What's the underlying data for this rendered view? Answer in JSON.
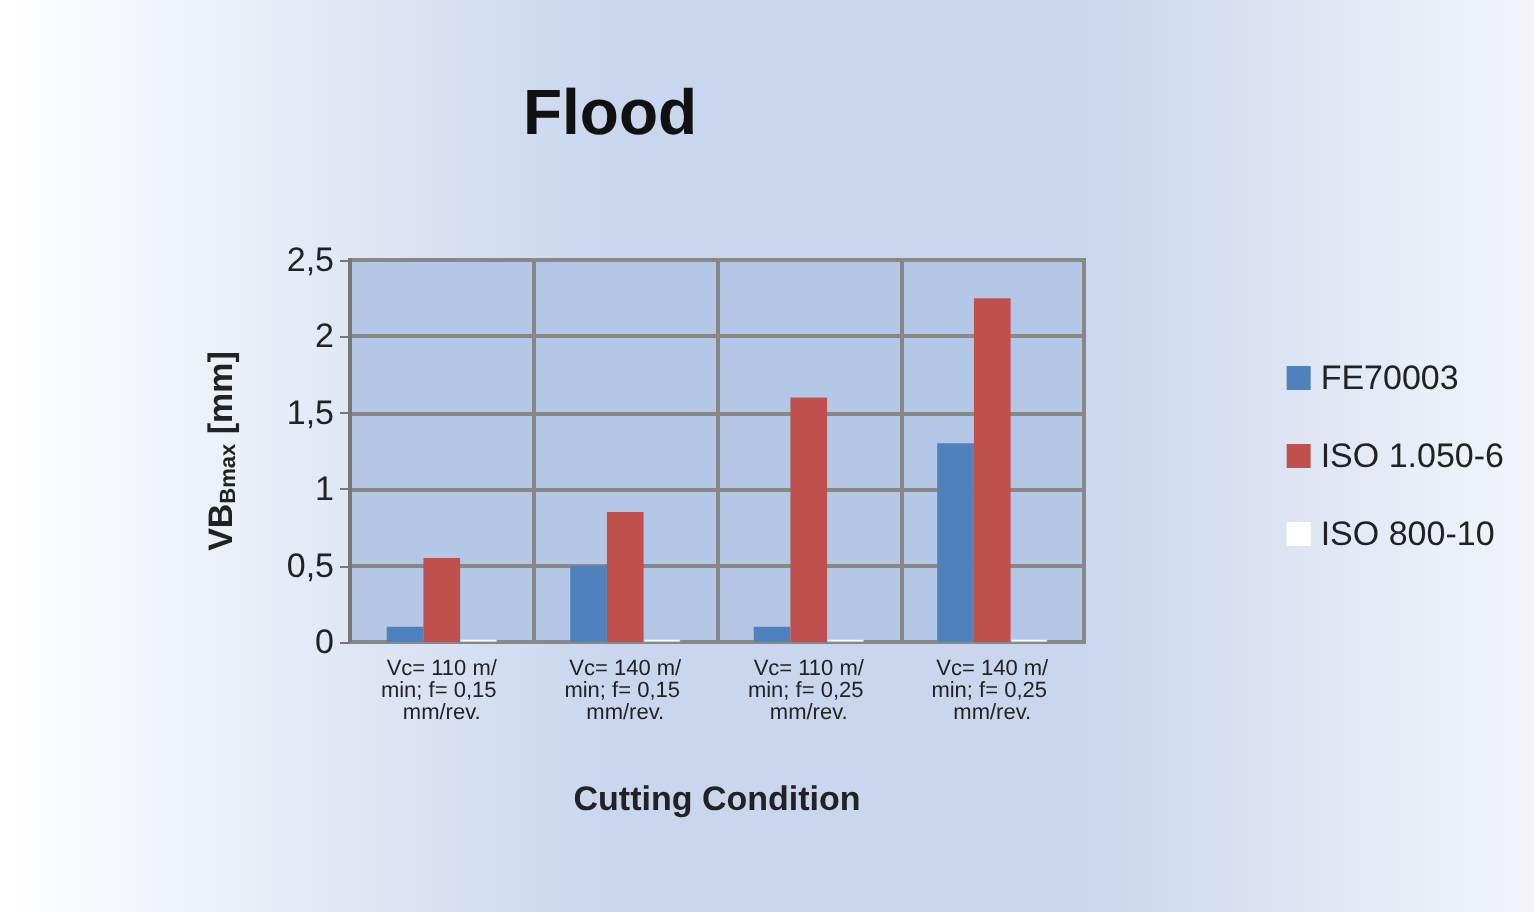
{
  "chart_data": {
    "type": "bar",
    "title": "Flood",
    "xlabel": "Cutting Condition",
    "ylabel": "VB$_{Bmax}$ [mm]",
    "categories": [
      "Vc= 110 m/min; f= 0,15 mm/rev.",
      "Vc= 140 m/min; f= 0,15 mm/rev.",
      "Vc= 110 m/min; f= 0,25 mm/rev.",
      "Vc= 140 m/min; f= 0,25 mm/rev."
    ],
    "series": [
      {
        "name": "FE70003",
        "color": "#4f81bd",
        "values": [
          0.1,
          0.5,
          0.1,
          1.3
        ]
      },
      {
        "name": "ISO 1.050-6",
        "color": "#c0504d",
        "values": [
          0.55,
          0.85,
          1.6,
          2.25
        ]
      },
      {
        "name": "ISO 800-10",
        "color": "#ffffff",
        "values": [
          0.02,
          0.02,
          0.02,
          0.02
        ]
      }
    ],
    "ylim": [
      0,
      2.5
    ],
    "yticks": [
      {
        "value": 0,
        "label": "0"
      },
      {
        "value": 0.5,
        "label": "0,5"
      },
      {
        "value": 1,
        "label": "1"
      },
      {
        "value": 1.5,
        "label": "1,5"
      },
      {
        "value": 2,
        "label": "2"
      },
      {
        "value": 2.5,
        "label": "2,5"
      }
    ],
    "grid": true,
    "legend": "right"
  }
}
